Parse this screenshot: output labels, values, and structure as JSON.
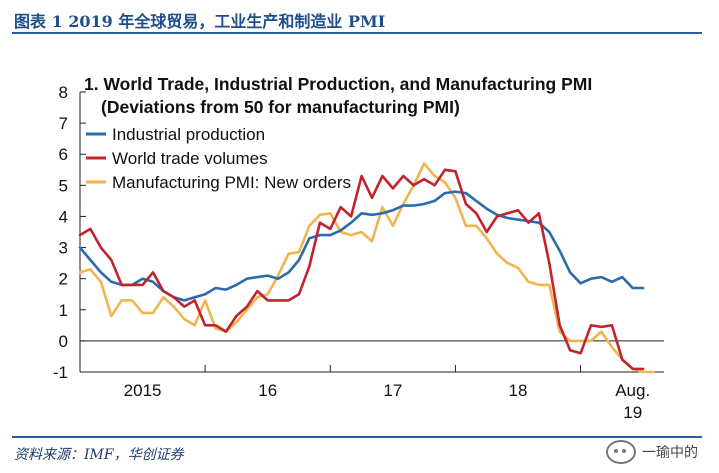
{
  "header": {
    "title": "图表 1   2019 年全球贸易，工业生产和制造业 PMI"
  },
  "footer": {
    "source": "资料来源：IMF，华创证券",
    "watermark": "一瑜中的"
  },
  "colors": {
    "industrial": "#2a6aad",
    "trade": "#c0242f",
    "pmi": "#f2b44f",
    "rule": "#2d5a9a"
  },
  "chart_data": {
    "type": "line",
    "title": "1. World Trade, Industrial Production, and Manufacturing PMI",
    "subtitle": "(Deviations from 50 for manufacturing PMI)",
    "xlabel": "",
    "ylabel": "",
    "ylim": [
      -1,
      8
    ],
    "yticks": [
      -1,
      0,
      1,
      2,
      3,
      4,
      5,
      6,
      7,
      8
    ],
    "xlim": [
      0,
      56
    ],
    "xticks": [
      {
        "label": "2015",
        "x": 6
      },
      {
        "label": "16",
        "x": 18
      },
      {
        "label": "17",
        "x": 30
      },
      {
        "label": "18",
        "x": 42
      },
      {
        "label": "Aug.",
        "label2": "19",
        "x": 53
      }
    ],
    "year_separators": [
      0,
      12,
      24,
      36,
      48
    ],
    "grid": false,
    "legend": "top-left",
    "series": [
      {
        "name": "Industrial production",
        "color": "#2a6aad",
        "x": [
          0,
          1,
          2,
          3,
          4,
          5,
          6,
          7,
          8,
          9,
          10,
          11,
          12,
          13,
          14,
          15,
          16,
          17,
          18,
          19,
          20,
          21,
          22,
          23,
          24,
          25,
          26,
          27,
          28,
          29,
          30,
          31,
          32,
          33,
          34,
          35,
          36,
          37,
          38,
          39,
          40,
          41,
          42,
          43,
          44,
          45,
          46,
          47,
          48,
          49,
          50,
          51,
          52,
          53,
          54
        ],
        "values": [
          3.0,
          2.6,
          2.2,
          1.9,
          1.8,
          1.8,
          2.0,
          1.9,
          1.6,
          1.4,
          1.3,
          1.4,
          1.5,
          1.7,
          1.65,
          1.8,
          2.0,
          2.05,
          2.1,
          2.0,
          2.2,
          2.6,
          3.3,
          3.4,
          3.4,
          3.55,
          3.8,
          4.1,
          4.05,
          4.1,
          4.2,
          4.35,
          4.35,
          4.4,
          4.5,
          4.75,
          4.8,
          4.75,
          4.5,
          4.25,
          4.05,
          3.95,
          3.9,
          3.85,
          3.8,
          3.5,
          2.9,
          2.2,
          1.85,
          2.0,
          2.05,
          1.9,
          2.05,
          1.7,
          1.7
        ]
      },
      {
        "name": "World trade volumes",
        "color": "#c0242f",
        "x": [
          0,
          1,
          2,
          3,
          4,
          5,
          6,
          7,
          8,
          9,
          10,
          11,
          12,
          13,
          14,
          15,
          16,
          17,
          18,
          19,
          20,
          21,
          22,
          23,
          24,
          25,
          26,
          27,
          28,
          29,
          30,
          31,
          32,
          33,
          34,
          35,
          36,
          37,
          38,
          39,
          40,
          41,
          42,
          43,
          44,
          45,
          46,
          47,
          48,
          49,
          50,
          51,
          52,
          53,
          54
        ],
        "values": [
          3.4,
          3.6,
          3.0,
          2.6,
          1.8,
          1.8,
          1.8,
          2.2,
          1.6,
          1.4,
          1.1,
          1.3,
          0.5,
          0.5,
          0.3,
          0.8,
          1.1,
          1.6,
          1.3,
          1.3,
          1.3,
          1.5,
          2.4,
          3.8,
          3.6,
          4.3,
          4.0,
          5.3,
          4.6,
          5.3,
          4.9,
          5.3,
          5.0,
          5.2,
          5.0,
          5.5,
          5.45,
          4.4,
          4.1,
          3.5,
          4.0,
          4.1,
          4.2,
          3.8,
          4.1,
          2.5,
          0.5,
          -0.3,
          -0.4,
          0.5,
          0.45,
          0.5,
          -0.6,
          -0.9,
          -0.9
        ]
      },
      {
        "name": "Manufacturing PMI: New orders",
        "color": "#f2b44f",
        "x": [
          0,
          1,
          2,
          3,
          4,
          5,
          6,
          7,
          8,
          9,
          10,
          11,
          12,
          13,
          14,
          15,
          16,
          17,
          18,
          19,
          20,
          21,
          22,
          23,
          24,
          25,
          26,
          27,
          28,
          29,
          30,
          31,
          32,
          33,
          34,
          35,
          36,
          37,
          38,
          39,
          40,
          41,
          42,
          43,
          44,
          45,
          46,
          47,
          48,
          49,
          50,
          51,
          52,
          53,
          54,
          55
        ],
        "values": [
          2.2,
          2.3,
          1.9,
          0.8,
          1.3,
          1.3,
          0.9,
          0.9,
          1.4,
          1.1,
          0.7,
          0.5,
          1.3,
          0.4,
          0.3,
          0.6,
          1.0,
          1.4,
          1.5,
          2.1,
          2.8,
          2.85,
          3.7,
          4.05,
          4.1,
          3.5,
          3.4,
          3.5,
          3.2,
          4.3,
          3.7,
          4.4,
          5.0,
          5.7,
          5.3,
          5.1,
          4.6,
          3.7,
          3.7,
          3.3,
          2.8,
          2.5,
          2.35,
          1.9,
          1.8,
          1.8,
          0.3,
          0.0,
          0.0,
          0.0,
          0.3,
          -0.2,
          -0.6,
          -0.9,
          -1.0,
          -1.0
        ]
      }
    ]
  }
}
